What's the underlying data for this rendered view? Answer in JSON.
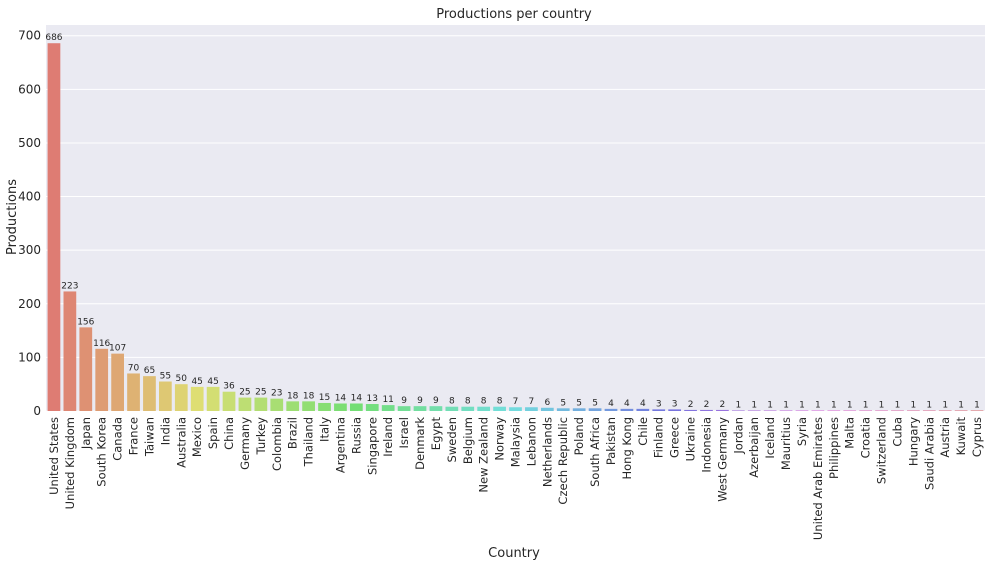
{
  "chart_data": {
    "type": "bar",
    "title": "Productions per country",
    "xlabel": "Country",
    "ylabel": "Productions",
    "ylim": [
      0,
      720
    ],
    "yticks": [
      0,
      100,
      200,
      300,
      400,
      500,
      600,
      700
    ],
    "grid": "horizontal",
    "background": "#eaeaf2",
    "categories": [
      "United States",
      "United Kingdom",
      "Japan",
      "South Korea",
      "Canada",
      "France",
      "Taiwan",
      "India",
      "Australia",
      "Mexico",
      "Spain",
      "China",
      "Germany",
      "Turkey",
      "Colombia",
      "Brazil",
      "Thailand",
      "Italy",
      "Argentina",
      "Russia",
      "Singapore",
      "Ireland",
      "Israel",
      "Denmark",
      "Egypt",
      "Sweden",
      "Belgium",
      "New Zealand",
      "Norway",
      "Malaysia",
      "Lebanon",
      "Netherlands",
      "Czech Republic",
      "Poland",
      "South Africa",
      "Pakistan",
      "Hong Kong",
      "Chile",
      "Finland",
      "Greece",
      "Ukraine",
      "Indonesia",
      "West Germany",
      "Jordan",
      "Azerbaijan",
      "Iceland",
      "Mauritius",
      "Syria",
      "United Arab Emirates",
      "Philippines",
      "Malta",
      "Croatia",
      "Switzerland",
      "Cuba",
      "Hungary",
      "Saudi Arabia",
      "Austria",
      "Kuwait",
      "Cyprus"
    ],
    "values": [
      686,
      223,
      156,
      116,
      107,
      70,
      65,
      55,
      50,
      45,
      45,
      36,
      25,
      25,
      23,
      18,
      18,
      15,
      14,
      14,
      13,
      11,
      9,
      9,
      9,
      8,
      8,
      8,
      8,
      7,
      7,
      6,
      5,
      5,
      5,
      4,
      4,
      4,
      3,
      3,
      2,
      2,
      2,
      1,
      1,
      1,
      1,
      1,
      1,
      1,
      1,
      1,
      1,
      1,
      1,
      1,
      1,
      1,
      1
    ],
    "data_labels": [
      "686",
      "223",
      "156",
      "116",
      "107",
      "70",
      "65",
      "55",
      "50",
      "45",
      "45",
      "36",
      "25",
      "25",
      "23",
      "18",
      "18",
      "15",
      "14",
      "14",
      "13",
      "11",
      "9",
      "9",
      "9",
      "8",
      "8",
      "8",
      "8",
      "7",
      "7",
      "6",
      "5",
      "5",
      "5",
      "4",
      "4",
      "4",
      "3",
      "3",
      "2",
      "2",
      "2",
      "1",
      "1",
      "1",
      "1",
      "1",
      "1",
      "1",
      "1",
      "1",
      "1",
      "1",
      "1",
      "1",
      "1",
      "1",
      "1"
    ],
    "palette": "husl"
  }
}
